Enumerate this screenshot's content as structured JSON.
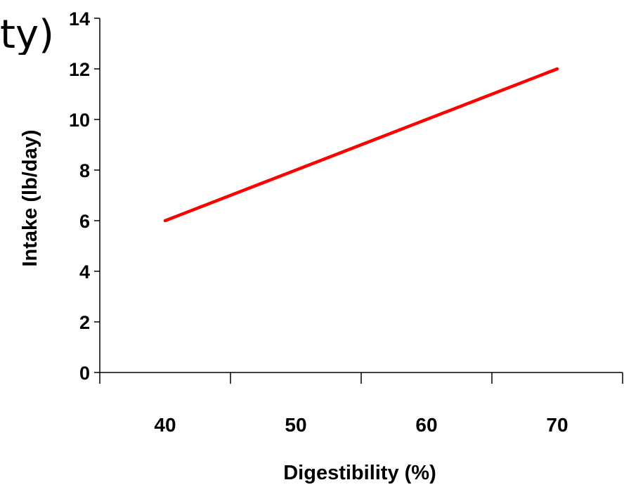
{
  "background_text": "ty)",
  "chart_data": {
    "type": "line",
    "title": "",
    "xlabel": "Digestibility (%)",
    "ylabel": "Intake (lb/day)",
    "x_categories": [
      "40",
      "50",
      "60",
      "70"
    ],
    "x_range": [
      35,
      75
    ],
    "ylim": [
      0,
      14
    ],
    "y_ticks": [
      0,
      2,
      4,
      6,
      8,
      10,
      12,
      14
    ],
    "grid": false,
    "legend": "none",
    "series": [
      {
        "color": "#ff0000",
        "points": [
          [
            40,
            6
          ],
          [
            70,
            12
          ]
        ]
      }
    ]
  }
}
